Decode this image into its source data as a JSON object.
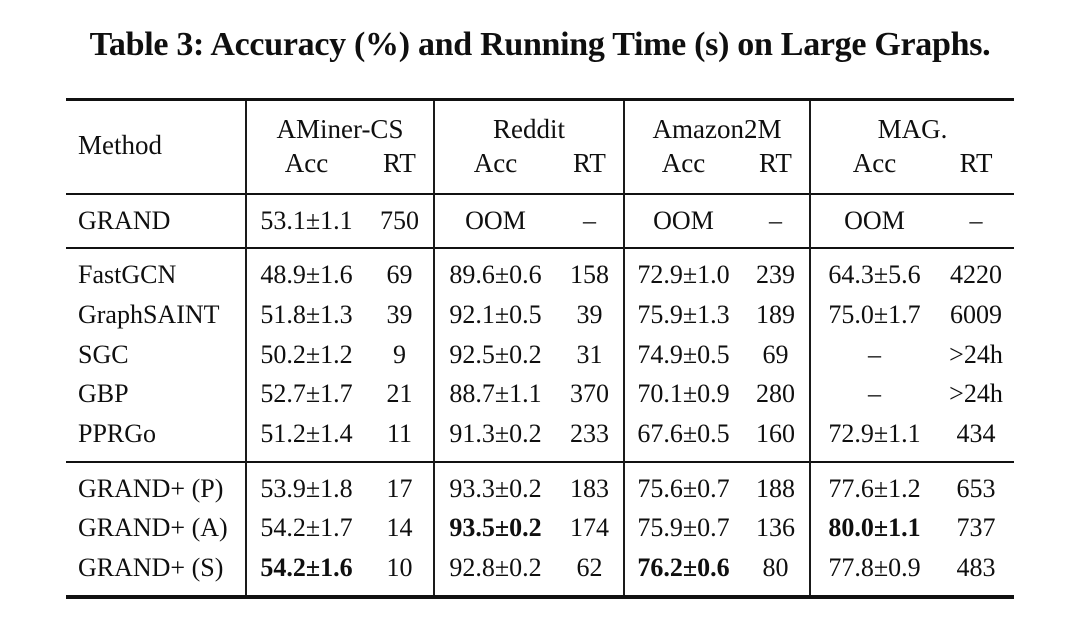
{
  "title": "Table 3: Accuracy (%) and Running Time (s) on Large Graphs.",
  "table": {
    "method_header": "Method",
    "groups": [
      {
        "label": "AMiner-CS",
        "sub": [
          "Acc",
          "RT"
        ]
      },
      {
        "label": "Reddit",
        "sub": [
          "Acc",
          "RT"
        ]
      },
      {
        "label": "Amazon2M",
        "sub": [
          "Acc",
          "RT"
        ]
      },
      {
        "label": "MAG.",
        "sub": [
          "Acc",
          "RT"
        ]
      }
    ],
    "sections": [
      {
        "rows": [
          {
            "method": "GRAND",
            "cells": [
              {
                "v": "53.1±1.1"
              },
              {
                "v": "750"
              },
              {
                "v": "OOM"
              },
              {
                "v": "–"
              },
              {
                "v": "OOM"
              },
              {
                "v": "–"
              },
              {
                "v": "OOM"
              },
              {
                "v": "–"
              }
            ]
          }
        ]
      },
      {
        "rows": [
          {
            "method": "FastGCN",
            "cells": [
              {
                "v": "48.9±1.6"
              },
              {
                "v": "69"
              },
              {
                "v": "89.6±0.6"
              },
              {
                "v": "158"
              },
              {
                "v": "72.9±1.0"
              },
              {
                "v": "239"
              },
              {
                "v": "64.3±5.6"
              },
              {
                "v": "4220"
              }
            ]
          },
          {
            "method": "GraphSAINT",
            "cells": [
              {
                "v": "51.8±1.3"
              },
              {
                "v": "39"
              },
              {
                "v": "92.1±0.5"
              },
              {
                "v": "39"
              },
              {
                "v": "75.9±1.3"
              },
              {
                "v": "189"
              },
              {
                "v": "75.0±1.7"
              },
              {
                "v": "6009"
              }
            ]
          },
          {
            "method": "SGC",
            "cells": [
              {
                "v": "50.2±1.2"
              },
              {
                "v": "9"
              },
              {
                "v": "92.5±0.2"
              },
              {
                "v": "31"
              },
              {
                "v": "74.9±0.5"
              },
              {
                "v": "69"
              },
              {
                "v": "–"
              },
              {
                "v": ">24h"
              }
            ]
          },
          {
            "method": "GBP",
            "cells": [
              {
                "v": "52.7±1.7"
              },
              {
                "v": "21"
              },
              {
                "v": "88.7±1.1"
              },
              {
                "v": "370"
              },
              {
                "v": "70.1±0.9"
              },
              {
                "v": "280"
              },
              {
                "v": "–"
              },
              {
                "v": ">24h"
              }
            ]
          },
          {
            "method": "PPRGo",
            "cells": [
              {
                "v": "51.2±1.4"
              },
              {
                "v": "11"
              },
              {
                "v": "91.3±0.2"
              },
              {
                "v": "233"
              },
              {
                "v": "67.6±0.5"
              },
              {
                "v": "160"
              },
              {
                "v": "72.9±1.1"
              },
              {
                "v": "434"
              }
            ]
          }
        ]
      },
      {
        "rows": [
          {
            "method": "GRAND+ (P)",
            "cells": [
              {
                "v": "53.9±1.8"
              },
              {
                "v": "17"
              },
              {
                "v": "93.3±0.2"
              },
              {
                "v": "183"
              },
              {
                "v": "75.6±0.7"
              },
              {
                "v": "188"
              },
              {
                "v": "77.6±1.2"
              },
              {
                "v": "653"
              }
            ]
          },
          {
            "method": "GRAND+ (A)",
            "cells": [
              {
                "v": "54.2±1.7"
              },
              {
                "v": "14"
              },
              {
                "v": "93.5±0.2",
                "b": true
              },
              {
                "v": "174"
              },
              {
                "v": "75.9±0.7"
              },
              {
                "v": "136"
              },
              {
                "v": "80.0±1.1",
                "b": true
              },
              {
                "v": "737"
              }
            ]
          },
          {
            "method": "GRAND+ (S)",
            "cells": [
              {
                "v": "54.2±1.6",
                "b": true
              },
              {
                "v": "10"
              },
              {
                "v": "92.8±0.2"
              },
              {
                "v": "62"
              },
              {
                "v": "76.2±0.6",
                "b": true
              },
              {
                "v": "80"
              },
              {
                "v": "77.8±0.9"
              },
              {
                "v": "483"
              }
            ]
          }
        ]
      }
    ]
  }
}
